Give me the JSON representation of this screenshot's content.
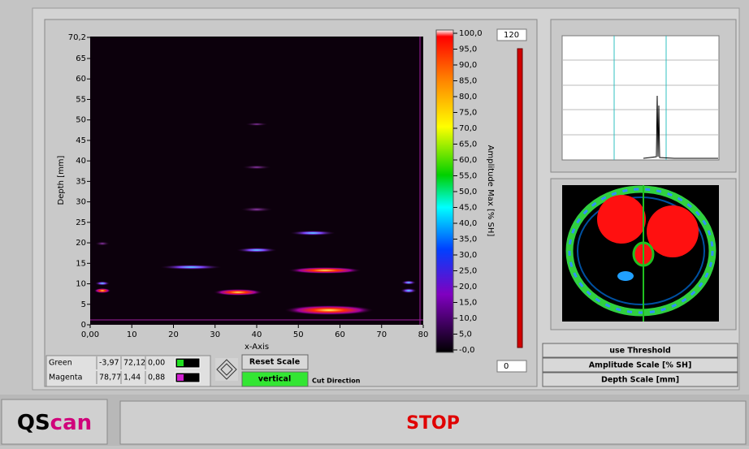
{
  "bscan": {
    "y_axis_title": "Depth [mm]",
    "x_axis_title": "x-Axis",
    "y_ticks": [
      "70,2",
      "65",
      "60",
      "55",
      "50",
      "45",
      "40",
      "35",
      "30",
      "25",
      "20",
      "15",
      "10",
      "5",
      "0"
    ],
    "x_ticks": [
      "0,00",
      "10",
      "20",
      "30",
      "40",
      "50",
      "60",
      "70",
      "80"
    ]
  },
  "colorbar": {
    "title": "Amplitude Max [% SH]",
    "ticks": [
      "100,0",
      "95,0",
      "90,0",
      "85,0",
      "80,0",
      "75,0",
      "70,0",
      "65,0",
      "60,0",
      "55,0",
      "50,0",
      "45,0",
      "40,0",
      "35,0",
      "30,0",
      "25,0",
      "20,0",
      "15,0",
      "10,0",
      "5,0",
      "-0,0"
    ],
    "max_control": "120",
    "min_control": "0"
  },
  "cursors": [
    {
      "name": "Green",
      "x": "-3,97",
      "y": "72,12",
      "z": "0,00"
    },
    {
      "name": "Magenta",
      "x": "78,77",
      "y": "1,44",
      "z": "0,88"
    }
  ],
  "controls": {
    "reset_scale": "Reset Scale",
    "cut_direction_value": "vertical",
    "cut_direction_label": "Cut Direction",
    "use_threshold": "use Threshold",
    "amplitude_scale": "Amplitude Scale [% SH]",
    "depth_scale": "Depth Scale [mm]"
  },
  "logo": {
    "first": "QS",
    "second": "can"
  },
  "stop": "STOP"
}
